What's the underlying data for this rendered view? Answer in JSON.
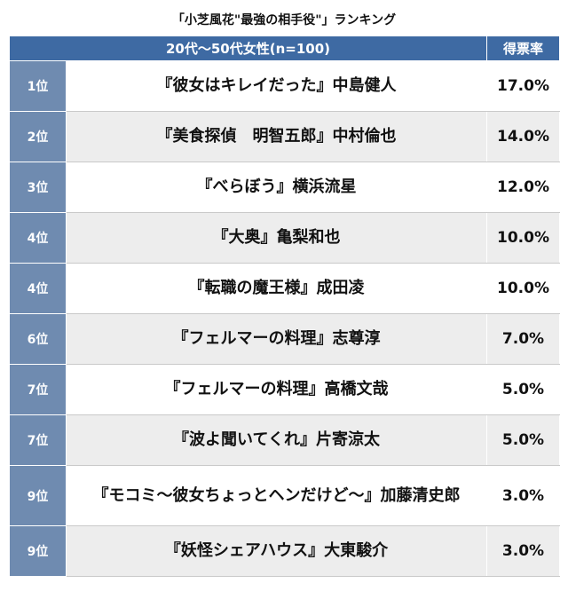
{
  "title": "「小芝風花\"最強の相手役\"」ランキング",
  "header": {
    "group": "20代〜50代女性(n=100)",
    "rate_label": "得票率"
  },
  "rows": [
    {
      "rank": "1位",
      "name": "『彼女はキレイだった』中島健人",
      "pct": "17.0%"
    },
    {
      "rank": "2位",
      "name": "『美食探偵　明智五郎』中村倫也",
      "pct": "14.0%"
    },
    {
      "rank": "3位",
      "name": "『べらぼう』横浜流星",
      "pct": "12.0%"
    },
    {
      "rank": "4位",
      "name": "『大奥』亀梨和也",
      "pct": "10.0%"
    },
    {
      "rank": "4位",
      "name": "『転職の魔王様』成田凌",
      "pct": "10.0%"
    },
    {
      "rank": "6位",
      "name": "『フェルマーの料理』志尊淳",
      "pct": "7.0%"
    },
    {
      "rank": "7位",
      "name": "『フェルマーの料理』高橋文哉",
      "pct": "5.0%"
    },
    {
      "rank": "7位",
      "name": "『波よ聞いてくれ』片寄涼太",
      "pct": "5.0%"
    },
    {
      "rank": "9位",
      "name": "『モコミ〜彼女ちょっとヘンだけど〜』加藤清史郎",
      "pct": "3.0%"
    },
    {
      "rank": "9位",
      "name": "『妖怪シェアハウス』大東駿介",
      "pct": "3.0%"
    }
  ]
}
